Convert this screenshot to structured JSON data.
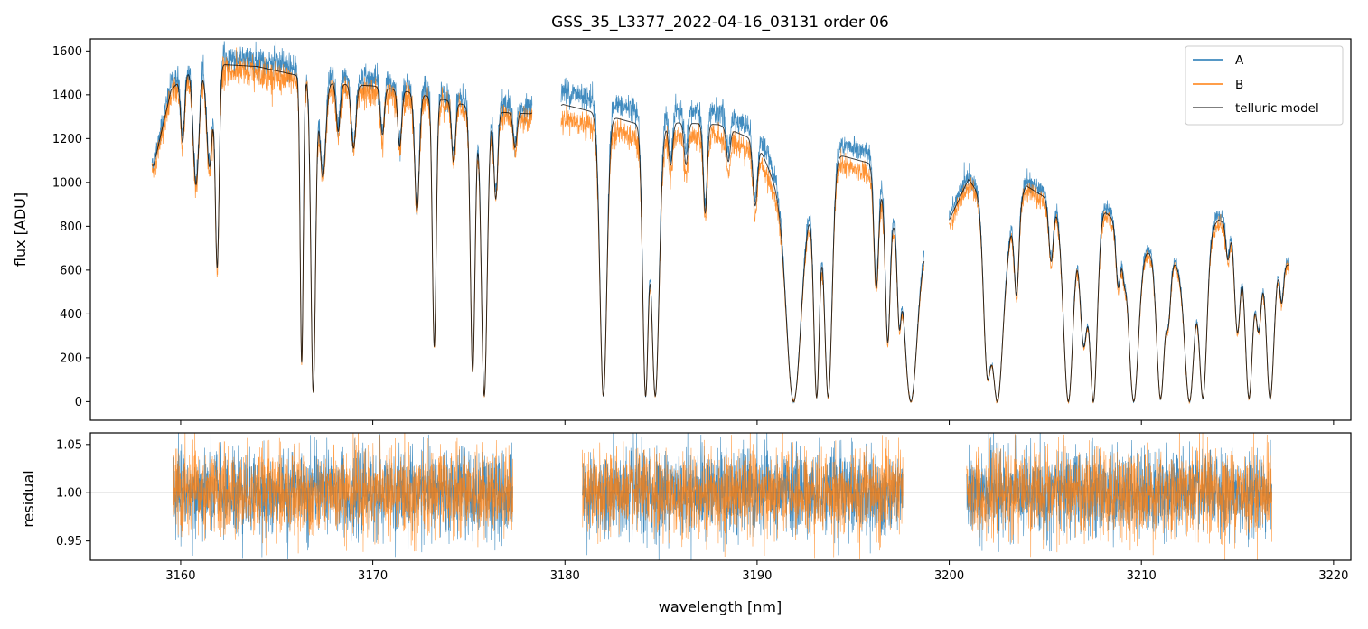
{
  "chart_data": [
    {
      "panel": "flux",
      "type": "line",
      "title": "GSS_35_L3377_2022-04-16_03131  order 06",
      "xlabel": "",
      "ylabel": "flux [ADU]",
      "xlim": [
        3155.3,
        3220.9
      ],
      "ylim": [
        -85,
        1655
      ],
      "yticks": [
        0,
        200,
        400,
        600,
        800,
        1000,
        1200,
        1400,
        1600
      ],
      "xticks": [
        3160,
        3170,
        3180,
        3190,
        3200,
        3210,
        3220
      ],
      "grid": false,
      "legend": "top-right",
      "series": [
        {
          "name": "A",
          "color": "#1f77b4"
        },
        {
          "name": "B",
          "color": "#ff7f0e"
        },
        {
          "name": "telluric model",
          "color": "#000000"
        }
      ],
      "segments": [
        [
          3158.5,
          3178.3
        ],
        [
          3179.8,
          3198.7
        ],
        [
          3200.0,
          3217.7
        ]
      ],
      "continuum_points": [
        {
          "x": 3158.6,
          "y": 1100
        },
        {
          "x": 3159.5,
          "y": 1450
        },
        {
          "x": 3160.5,
          "y": 1550
        },
        {
          "x": 3162,
          "y": 1570
        },
        {
          "x": 3164,
          "y": 1560
        },
        {
          "x": 3166,
          "y": 1520
        },
        {
          "x": 3168,
          "y": 1480
        },
        {
          "x": 3170,
          "y": 1470
        },
        {
          "x": 3172,
          "y": 1440
        },
        {
          "x": 3174,
          "y": 1400
        },
        {
          "x": 3176,
          "y": 1350
        },
        {
          "x": 3178.2,
          "y": 1340
        },
        {
          "x": 3179.9,
          "y": 1420
        },
        {
          "x": 3182,
          "y": 1370
        },
        {
          "x": 3184,
          "y": 1320
        },
        {
          "x": 3186,
          "y": 1330
        },
        {
          "x": 3188,
          "y": 1320
        },
        {
          "x": 3190,
          "y": 1240
        },
        {
          "x": 3192,
          "y": 800
        },
        {
          "x": 3194,
          "y": 1180
        },
        {
          "x": 3196,
          "y": 1130
        },
        {
          "x": 3198,
          "y": 650
        },
        {
          "x": 3200,
          "y": 850
        },
        {
          "x": 3201,
          "y": 1040
        },
        {
          "x": 3203,
          "y": 800
        },
        {
          "x": 3204,
          "y": 1010
        },
        {
          "x": 3206,
          "y": 900
        },
        {
          "x": 3208,
          "y": 900
        },
        {
          "x": 3210,
          "y": 720
        },
        {
          "x": 3212,
          "y": 640
        },
        {
          "x": 3214,
          "y": 850
        },
        {
          "x": 3216,
          "y": 770
        },
        {
          "x": 3217.6,
          "y": 640
        }
      ],
      "absorption_lines": [
        {
          "x": 3160.1,
          "depth": 0.2,
          "width": 0.1
        },
        {
          "x": 3160.8,
          "depth": 0.35,
          "width": 0.15
        },
        {
          "x": 3161.5,
          "depth": 0.3,
          "width": 0.15
        },
        {
          "x": 3161.9,
          "depth": 0.6,
          "width": 0.1
        },
        {
          "x": 3166.3,
          "depth": 0.88,
          "width": 0.08
        },
        {
          "x": 3166.9,
          "depth": 0.97,
          "width": 0.12
        },
        {
          "x": 3167.4,
          "depth": 0.3,
          "width": 0.15
        },
        {
          "x": 3168.2,
          "depth": 0.15,
          "width": 0.1
        },
        {
          "x": 3169.0,
          "depth": 0.2,
          "width": 0.12
        },
        {
          "x": 3170.5,
          "depth": 0.15,
          "width": 0.1
        },
        {
          "x": 3171.4,
          "depth": 0.18,
          "width": 0.1
        },
        {
          "x": 3172.3,
          "depth": 0.38,
          "width": 0.12
        },
        {
          "x": 3173.2,
          "depth": 0.82,
          "width": 0.1
        },
        {
          "x": 3174.2,
          "depth": 0.2,
          "width": 0.1
        },
        {
          "x": 3175.2,
          "depth": 0.9,
          "width": 0.12
        },
        {
          "x": 3175.8,
          "depth": 0.98,
          "width": 0.15
        },
        {
          "x": 3176.4,
          "depth": 0.3,
          "width": 0.1
        },
        {
          "x": 3177.4,
          "depth": 0.12,
          "width": 0.1
        },
        {
          "x": 3182.0,
          "depth": 0.98,
          "width": 0.18
        },
        {
          "x": 3184.2,
          "depth": 0.98,
          "width": 0.15
        },
        {
          "x": 3184.7,
          "depth": 0.98,
          "width": 0.2
        },
        {
          "x": 3185.5,
          "depth": 0.15,
          "width": 0.1
        },
        {
          "x": 3186.3,
          "depth": 0.15,
          "width": 0.1
        },
        {
          "x": 3187.3,
          "depth": 0.32,
          "width": 0.1
        },
        {
          "x": 3188.5,
          "depth": 0.12,
          "width": 0.1
        },
        {
          "x": 3189.9,
          "depth": 0.25,
          "width": 0.12
        },
        {
          "x": 3191.9,
          "depth": 1.0,
          "width": 0.35
        },
        {
          "x": 3193.1,
          "depth": 0.98,
          "width": 0.15
        },
        {
          "x": 3193.7,
          "depth": 0.98,
          "width": 0.2
        },
        {
          "x": 3196.2,
          "depth": 0.5,
          "width": 0.12
        },
        {
          "x": 3196.8,
          "depth": 0.7,
          "width": 0.12
        },
        {
          "x": 3197.4,
          "depth": 0.5,
          "width": 0.1
        },
        {
          "x": 3198.0,
          "depth": 1.0,
          "width": 0.3
        },
        {
          "x": 3202.0,
          "depth": 0.85,
          "width": 0.2
        },
        {
          "x": 3202.5,
          "depth": 1.0,
          "width": 0.3
        },
        {
          "x": 3203.5,
          "depth": 0.45,
          "width": 0.12
        },
        {
          "x": 3205.3,
          "depth": 0.3,
          "width": 0.12
        },
        {
          "x": 3206.2,
          "depth": 1.0,
          "width": 0.25
        },
        {
          "x": 3207.0,
          "depth": 0.7,
          "width": 0.2
        },
        {
          "x": 3207.5,
          "depth": 1.0,
          "width": 0.2
        },
        {
          "x": 3208.8,
          "depth": 0.35,
          "width": 0.12
        },
        {
          "x": 3209.1,
          "depth": 0.2,
          "width": 0.1
        },
        {
          "x": 3209.6,
          "depth": 1.0,
          "width": 0.25
        },
        {
          "x": 3211.0,
          "depth": 0.98,
          "width": 0.2
        },
        {
          "x": 3211.4,
          "depth": 0.4,
          "width": 0.12
        },
        {
          "x": 3212.5,
          "depth": 1.0,
          "width": 0.25
        },
        {
          "x": 3213.2,
          "depth": 0.98,
          "width": 0.2
        },
        {
          "x": 3214.5,
          "depth": 0.2,
          "width": 0.1
        },
        {
          "x": 3215.0,
          "depth": 0.6,
          "width": 0.15
        },
        {
          "x": 3215.6,
          "depth": 0.98,
          "width": 0.2
        },
        {
          "x": 3216.1,
          "depth": 0.55,
          "width": 0.15
        },
        {
          "x": 3216.7,
          "depth": 0.98,
          "width": 0.2
        },
        {
          "x": 3217.3,
          "depth": 0.3,
          "width": 0.1
        }
      ],
      "b_scale": [
        {
          "x": 3158.5,
          "ratio": 0.96
        },
        {
          "x": 3178.3,
          "ratio": 0.96
        },
        {
          "x": 3179.8,
          "ratio": 0.91
        },
        {
          "x": 3198.7,
          "ratio": 0.92
        },
        {
          "x": 3200.0,
          "ratio": 0.95
        },
        {
          "x": 3217.7,
          "ratio": 0.95
        }
      ]
    },
    {
      "panel": "residual",
      "type": "line",
      "xlabel": "wavelength [nm]",
      "ylabel": "residual",
      "xlim": [
        3155.3,
        3220.9
      ],
      "ylim": [
        0.93,
        1.062
      ],
      "yticks": [
        0.95,
        1.0,
        1.05
      ],
      "ytick_labels": [
        "0.95",
        "1.00",
        "1.05"
      ],
      "xticks": [
        3160,
        3170,
        3180,
        3190,
        3200,
        3210,
        3220
      ],
      "reference_line": 1.0,
      "segments": [
        [
          3159.6,
          3177.3
        ],
        [
          3180.9,
          3197.6
        ],
        [
          3200.9,
          3216.8
        ]
      ],
      "noise_sigma": 0.022,
      "series": [
        {
          "name": "A",
          "color": "#1f77b4"
        },
        {
          "name": "B",
          "color": "#ff7f0e"
        }
      ]
    }
  ]
}
